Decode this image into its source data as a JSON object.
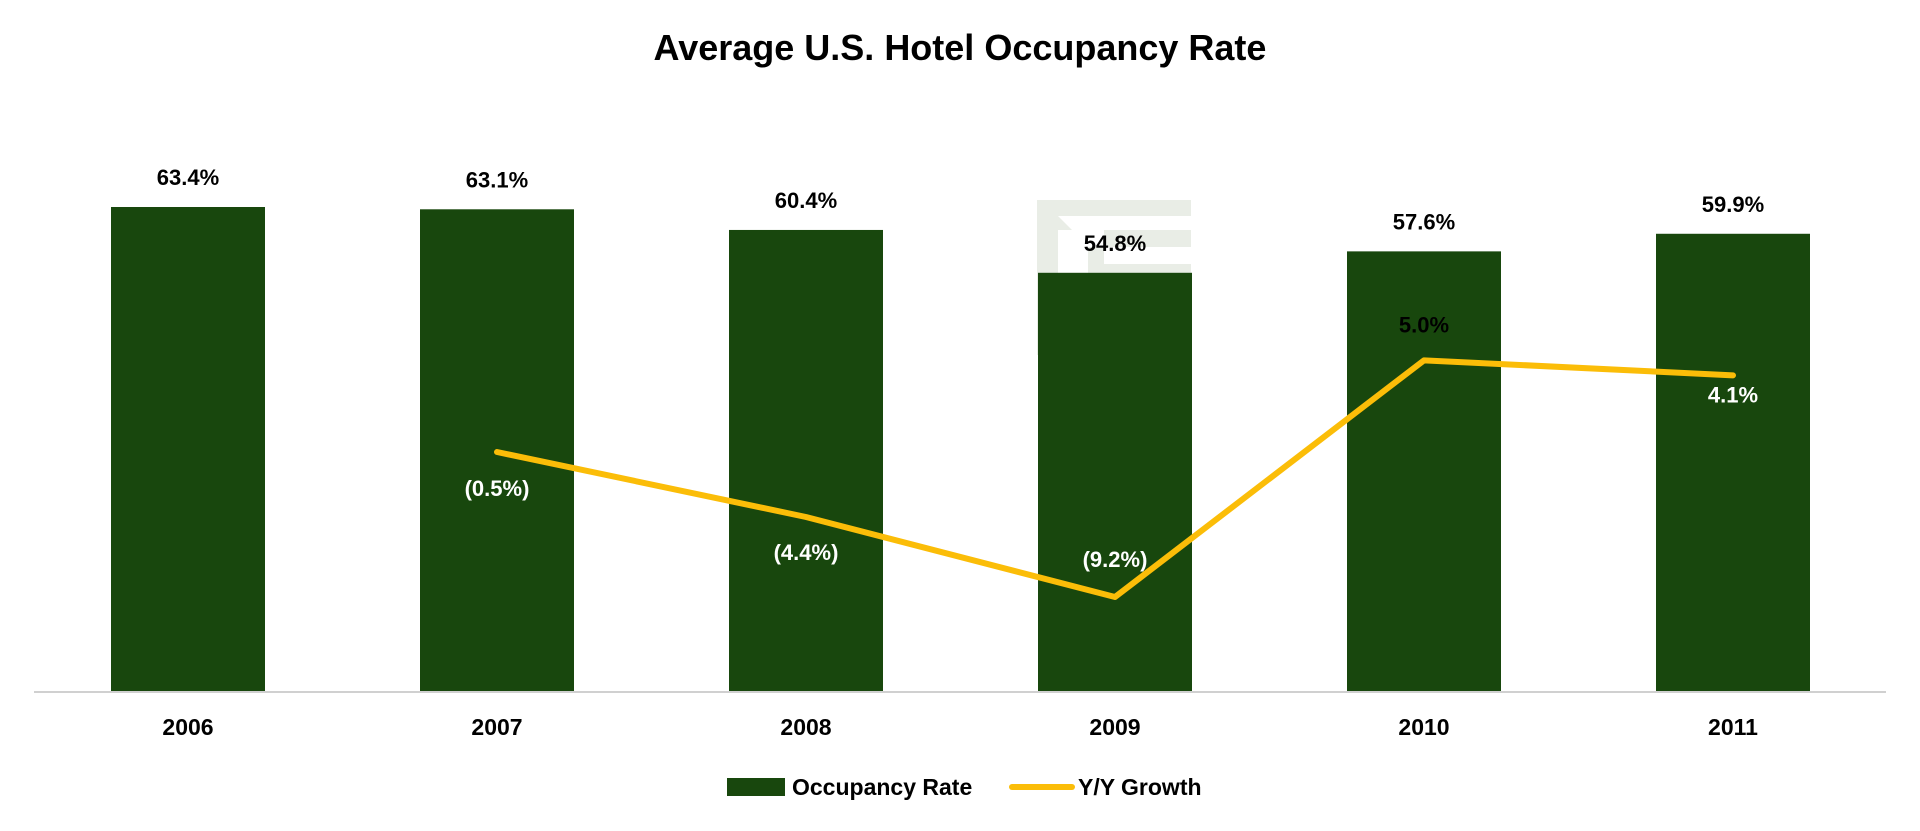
{
  "chart_data": {
    "type": "bar+line",
    "title": "Average U.S. Hotel Occupancy Rate",
    "categories": [
      "2006",
      "2007",
      "2008",
      "2009",
      "2010",
      "2011"
    ],
    "series": [
      {
        "name": "Occupancy Rate",
        "type": "bar",
        "values": [
          63.4,
          63.1,
          60.4,
          54.8,
          57.6,
          59.9
        ],
        "labels": [
          "63.4%",
          "63.1%",
          "60.4%",
          "54.8%",
          "57.6%",
          "59.9%"
        ],
        "color": "#18470d"
      },
      {
        "name": "Y/Y Growth",
        "type": "line",
        "values": [
          null,
          -0.5,
          -4.4,
          -9.2,
          5.0,
          4.1
        ],
        "labels": [
          "",
          "(0.5%)",
          "(4.4%)",
          "(9.2%)",
          "5.0%",
          "4.1%"
        ],
        "color": "#fbbd08"
      }
    ],
    "bar_ylim": [
      0,
      63.4
    ],
    "line_ylim": [
      -15,
      12
    ],
    "legend_position": "bottom",
    "grid": false
  },
  "colors": {
    "bar": "#18470d",
    "line": "#fbbd08",
    "axis": "#d0d0d0",
    "watermark": "#e9ede6"
  },
  "watermark": {
    "icon": "logo-watermark-icon"
  }
}
